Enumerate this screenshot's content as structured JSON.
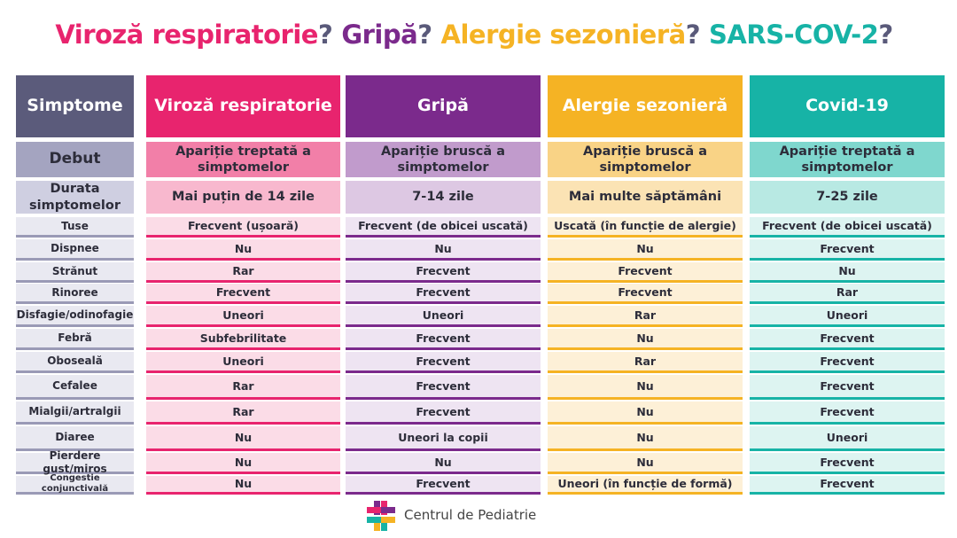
{
  "title": {
    "parts": [
      "Viroză respiratorie",
      "Gripă",
      "Alergie sezonieră",
      "SARS-COV-2"
    ],
    "separator": "?"
  },
  "table": {
    "header": [
      "Simptome",
      "Viroză respiratorie",
      "Gripă",
      "Alergie sezonieră",
      "Covid-19"
    ],
    "rows": [
      [
        "Debut",
        "Apariție treptată a simptomelor",
        "Apariție bruscă a simptomelor",
        "Apariție bruscă a simptomelor",
        "Apariție treptată a simptomelor"
      ],
      [
        "Durata simptomelor",
        "Mai puțin de 14 zile",
        "7-14 zile",
        "Mai multe săptămâni",
        "7-25 zile"
      ],
      [
        "Tuse",
        "Frecvent (ușoară)",
        "Frecvent (de obicei uscată)",
        "Uscată (în funcție de alergie)",
        "Frecvent (de obicei uscată)"
      ],
      [
        "Dispnee",
        "Nu",
        "Nu",
        "Nu",
        "Frecvent"
      ],
      [
        "Strănut",
        "Rar",
        "Frecvent",
        "Frecvent",
        "Nu"
      ],
      [
        "Rinoree",
        "Frecvent",
        "Frecvent",
        "Frecvent",
        "Rar"
      ],
      [
        "Disfagie/odinofagie",
        "Uneori",
        "Uneori",
        "Rar",
        "Uneori"
      ],
      [
        "Febră",
        "Subfebrilitate",
        "Frecvent",
        "Nu",
        "Frecvent"
      ],
      [
        "Oboseală",
        "Uneori",
        "Frecvent",
        "Rar",
        "Frecvent"
      ],
      [
        "Cefalee",
        "Rar",
        "Frecvent",
        "Nu",
        "Frecvent"
      ],
      [
        "Mialgii/artralgii",
        "Rar",
        "Frecvent",
        "Nu",
        "Frecvent"
      ],
      [
        "Diaree",
        "Nu",
        "Uneori la copii",
        "Nu",
        "Uneori"
      ],
      [
        "Pierdere gust/miros",
        "Nu",
        "Nu",
        "Nu",
        "Frecvent"
      ],
      [
        "Congestie conjunctivală",
        "Nu",
        "Frecvent",
        "Uneori (în funcție de formă)",
        "Frecvent"
      ]
    ]
  },
  "footer": {
    "brand": "Centrul de Pediatrie"
  }
}
